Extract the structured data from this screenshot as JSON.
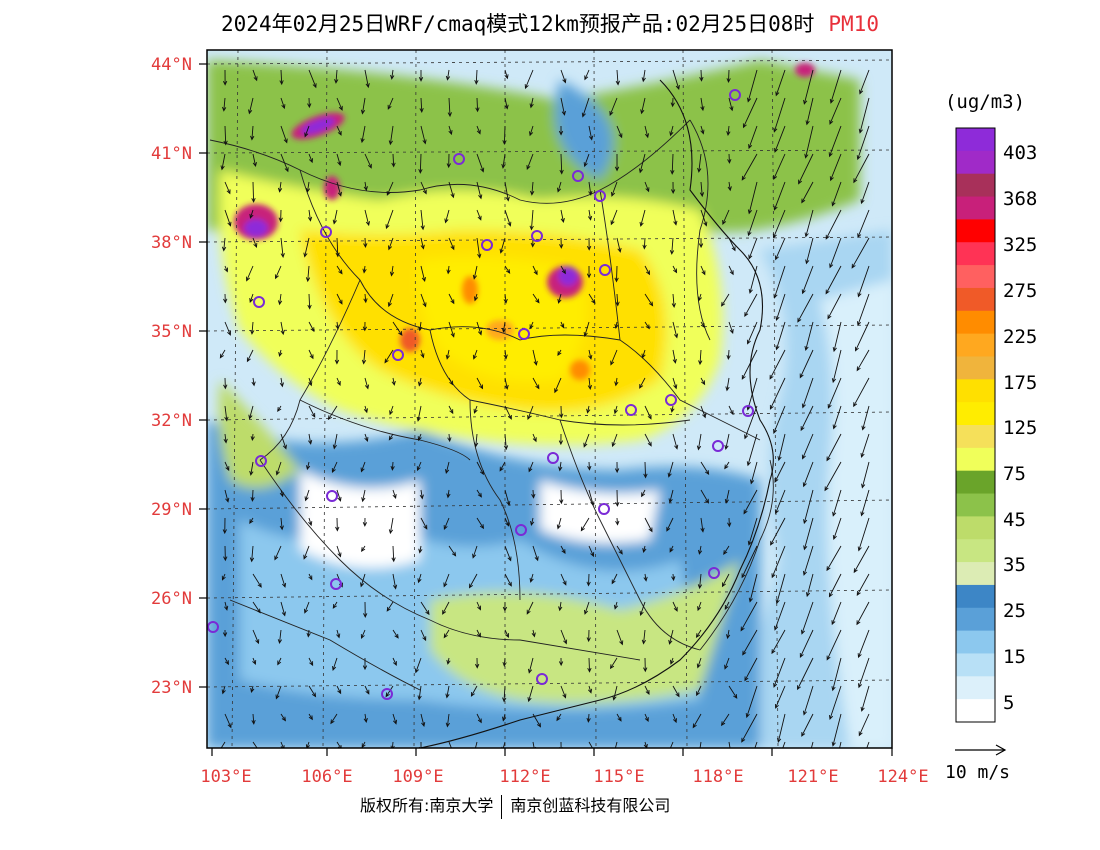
{
  "title": "2024年02月25日WRF/cmaq模式12km预报产品:02月25日08时",
  "pollutant": "PM10",
  "unit": "(ug/m3)",
  "lat_labels": [
    "44°N",
    "41°N",
    "38°N",
    "35°N",
    "32°N",
    "29°N",
    "26°N",
    "23°N"
  ],
  "lon_labels": [
    "103°E",
    "106°E",
    "109°E",
    "112°E",
    "115°E",
    "118°E",
    "121°E",
    "124°E"
  ],
  "legend": {
    "labels": [
      "403",
      "368",
      "325",
      "275",
      "225",
      "175",
      "125",
      "75",
      "45",
      "35",
      "25",
      "15",
      "5"
    ],
    "colors": [
      "#8e2bd9",
      "#a02ac8",
      "#a8305a",
      "#c8207a",
      "#ff0000",
      "#ff3355",
      "#ff6060",
      "#f05a28",
      "#ff8c00",
      "#ffa81f",
      "#f0b43c",
      "#ffe000",
      "#ffed00",
      "#f5e05a",
      "#f0ff5a",
      "#6aa42a",
      "#8cc24a",
      "#bddc6a",
      "#c8e682",
      "#dcecb4",
      "#3d86c6",
      "#5aa0d8",
      "#8cc8ee",
      "#b8e0f6",
      "#dcf0fa",
      "#ffffff"
    ]
  },
  "wind_reference": "10 m/s",
  "copyright": {
    "left": "版权所有:南京大学",
    "right": "南京创蓝科技有限公司"
  },
  "colors": {
    "axis_label": "#e23b3b",
    "title_pollutant": "#e8303a"
  }
}
